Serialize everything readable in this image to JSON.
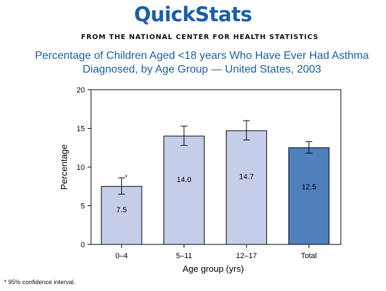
{
  "header": {
    "brand": "QuickStats",
    "source": "FROM THE NATIONAL CENTER FOR HEALTH STATISTICS",
    "title_line1": "Percentage of Children Aged <18 years Who Have Ever Had Asthma",
    "title_line2": "Diagnosed, by Age Group — United States, 2003"
  },
  "footnote": "* 95% confidence interval.",
  "colors": {
    "light_bar": "#c5cde8",
    "dark_bar": "#4f7fbd",
    "brand": "#1a5ea8"
  },
  "chart_data": {
    "type": "bar",
    "title": "Percentage of Children Aged <18 years Who Have Ever Had Asthma Diagnosed, by Age Group — United States, 2003",
    "xlabel": "Age group (yrs)",
    "ylabel": "Percentage",
    "ylim": [
      0,
      20
    ],
    "yticks": [
      0,
      5,
      10,
      15,
      20
    ],
    "grid": false,
    "categories": [
      "0–4",
      "5–11",
      "12–17",
      "Total"
    ],
    "values": [
      7.5,
      14.0,
      14.7,
      12.5
    ],
    "value_labels": [
      "7.5",
      "14.0",
      "14.7",
      "12.5"
    ],
    "ci_low": [
      6.5,
      12.8,
      13.5,
      11.8
    ],
    "ci_high": [
      8.6,
      15.3,
      16.0,
      13.3
    ],
    "ci_marker": "*",
    "highlight_category": "Total"
  }
}
